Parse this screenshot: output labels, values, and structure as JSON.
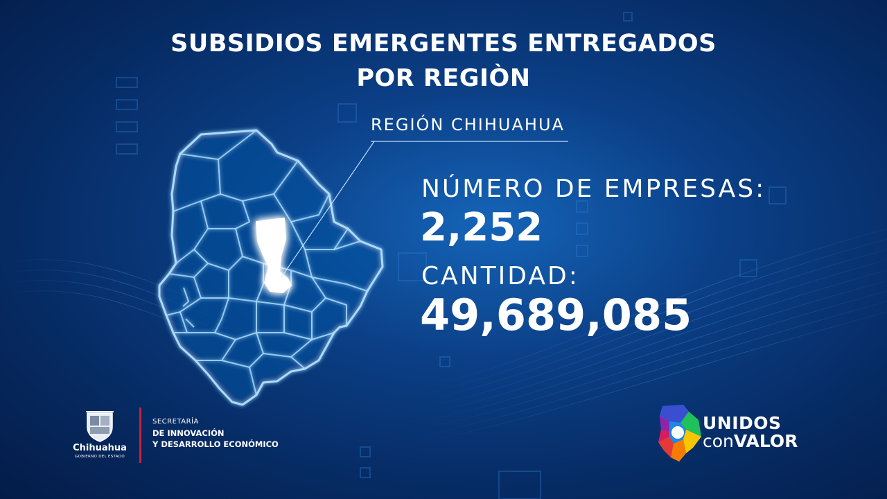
{
  "title": {
    "line1": "SUBSIDIOS EMERGENTES ENTREGADOS",
    "line2": "POR REGIÒN"
  },
  "region": {
    "label": "REGIÓN CHIHUAHUA"
  },
  "stats": {
    "companies_label": "NÚMERO DE EMPRESAS:",
    "companies_value": "2,252",
    "amount_label": "CANTIDAD:",
    "amount_value": "49,689,085"
  },
  "footer": {
    "government": {
      "name": "Chihuahua",
      "subtitle": "GOBIERNO DEL ESTADO"
    },
    "secretariat": {
      "line1": "SECRETARÍA",
      "line2": "DE INNOVACIÓN",
      "line3": "Y DESARROLLO ECONÓMICO"
    },
    "campaign": {
      "word1": "UNIDOS",
      "word2": "con",
      "word3": "VALOR"
    }
  },
  "colors": {
    "background_dark": "#041c48",
    "background_light": "#1564b8",
    "map_glow": "#8fd0ff",
    "divider_red": "#c8203a"
  }
}
